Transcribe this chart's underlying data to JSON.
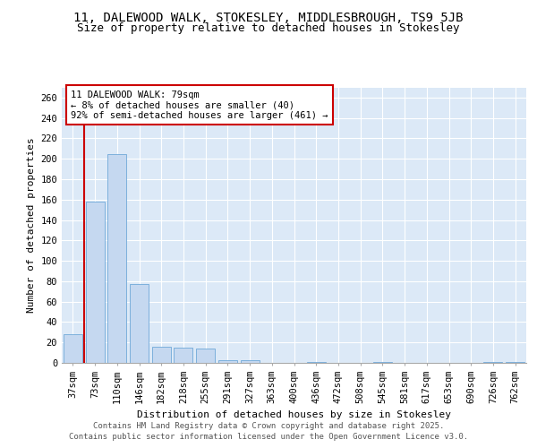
{
  "title_line1": "11, DALEWOOD WALK, STOKESLEY, MIDDLESBROUGH, TS9 5JB",
  "title_line2": "Size of property relative to detached houses in Stokesley",
  "xlabel": "Distribution of detached houses by size in Stokesley",
  "ylabel": "Number of detached properties",
  "categories": [
    "37sqm",
    "73sqm",
    "110sqm",
    "146sqm",
    "182sqm",
    "218sqm",
    "255sqm",
    "291sqm",
    "327sqm",
    "363sqm",
    "400sqm",
    "436sqm",
    "472sqm",
    "508sqm",
    "545sqm",
    "581sqm",
    "617sqm",
    "653sqm",
    "690sqm",
    "726sqm",
    "762sqm"
  ],
  "values": [
    28,
    158,
    205,
    77,
    16,
    15,
    14,
    3,
    3,
    0,
    0,
    1,
    0,
    0,
    1,
    0,
    0,
    0,
    0,
    1,
    1
  ],
  "bar_color": "#c5d8f0",
  "bar_edge_color": "#6fa8d8",
  "vline_color": "#cc0000",
  "vline_x": 1.0,
  "annotation_text": "11 DALEWOOD WALK: 79sqm\n← 8% of detached houses are smaller (40)\n92% of semi-detached houses are larger (461) →",
  "annotation_box_color": "#ffffff",
  "annotation_box_edge": "#cc0000",
  "ylim": [
    0,
    270
  ],
  "yticks": [
    0,
    20,
    40,
    60,
    80,
    100,
    120,
    140,
    160,
    180,
    200,
    220,
    240,
    260
  ],
  "grid_color": "#dce6f5",
  "background_color": "#dce9f7",
  "footer_line1": "Contains HM Land Registry data © Crown copyright and database right 2025.",
  "footer_line2": "Contains public sector information licensed under the Open Government Licence v3.0.",
  "title_fontsize": 10,
  "subtitle_fontsize": 9,
  "axis_label_fontsize": 8,
  "tick_fontsize": 7.5,
  "annotation_fontsize": 7.5,
  "footer_fontsize": 6.5
}
